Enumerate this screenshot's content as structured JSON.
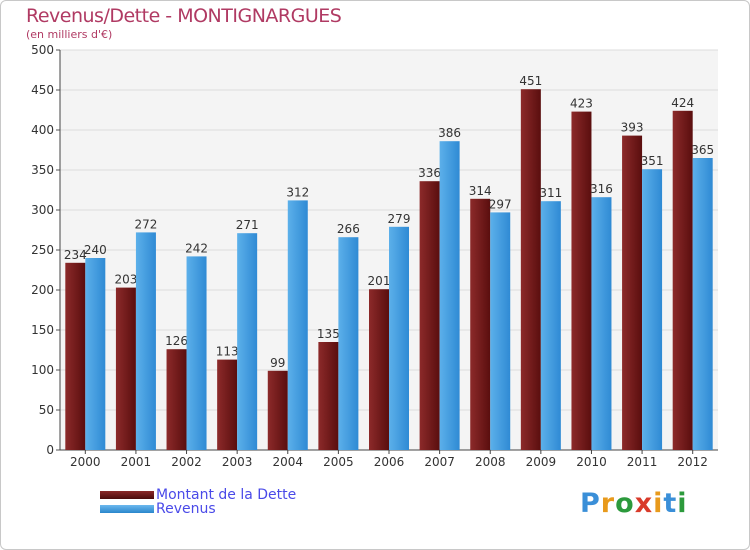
{
  "chart_data": {
    "type": "bar",
    "title": "Revenus/Dette - MONTIGNARGUES",
    "subtitle": "(en milliers d'€)",
    "categories": [
      "2000",
      "2001",
      "2002",
      "2003",
      "2004",
      "2005",
      "2006",
      "2007",
      "2008",
      "2009",
      "2010",
      "2011",
      "2012"
    ],
    "series": [
      {
        "name": "Montant de la Dette",
        "color": "#6e1414",
        "values": [
          234,
          203,
          126,
          113,
          99,
          135,
          201,
          336,
          314,
          451,
          423,
          393,
          424
        ]
      },
      {
        "name": "Revenus",
        "color": "#3f9ee0",
        "values": [
          240,
          272,
          242,
          271,
          312,
          266,
          279,
          386,
          297,
          311,
          316,
          351,
          365
        ]
      }
    ],
    "ylim": [
      0,
      500
    ],
    "yticks": [
      0,
      50,
      100,
      150,
      200,
      250,
      300,
      350,
      400,
      450,
      500
    ],
    "grid": true,
    "legend_position": "bottom-left"
  },
  "logo": {
    "letters": [
      "P",
      "r",
      "o",
      "x",
      "i",
      "t",
      "i"
    ],
    "colors": [
      "#3a8fd8",
      "#e89a1c",
      "#2c9a3c",
      "#d93a2a",
      "#e89a1c",
      "#3a8fd8",
      "#2c9a3c"
    ]
  }
}
